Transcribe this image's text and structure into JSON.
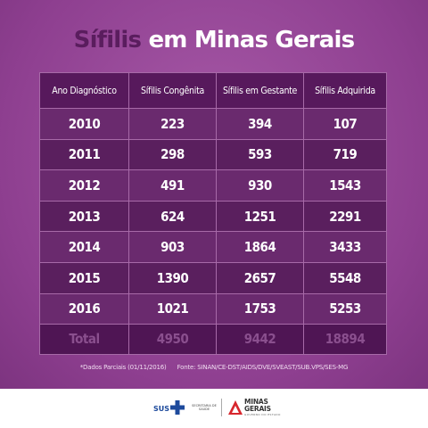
{
  "title": {
    "accent": "Sífilis",
    "rest": " em Minas Gerais"
  },
  "table": {
    "headers": [
      "Ano Diagnóstico",
      "Sífilis Congênita",
      "Sífilis em Gestante",
      "Sífilis Adquirida"
    ],
    "rows": [
      [
        "2010",
        "223",
        "394",
        "107"
      ],
      [
        "2011",
        "298",
        "593",
        "719"
      ],
      [
        "2012",
        "491",
        "930",
        "1543"
      ],
      [
        "2013",
        "624",
        "1251",
        "2291"
      ],
      [
        "2014",
        "903",
        "1864",
        "3433"
      ],
      [
        "2015",
        "1390",
        "2657",
        "5548"
      ],
      [
        "2016",
        "1021",
        "1753",
        "5253"
      ]
    ],
    "total": [
      "Total",
      "4950",
      "9442",
      "18894"
    ]
  },
  "footnote": {
    "note": "*Dados Parciais (01/11/2016)",
    "source": "Fonte: SINAN/CE-DST/AIDS/DVE/SVEAST/SUB.VPS/SES-MG"
  },
  "footer": {
    "sus": "SUS",
    "secretaria": "SECRETARIA DE SAÚDE",
    "mg_line1": "MINAS",
    "mg_line2": "GERAIS",
    "mg_sub": "GOVERNO DO ESTADO"
  },
  "colors": {
    "background": "#9b4d9c",
    "title_accent": "#5a1d5e",
    "cell_dark": "#5a1f5e",
    "cell_light": "#6a2a6e",
    "total_text": "#8a4f8e"
  }
}
